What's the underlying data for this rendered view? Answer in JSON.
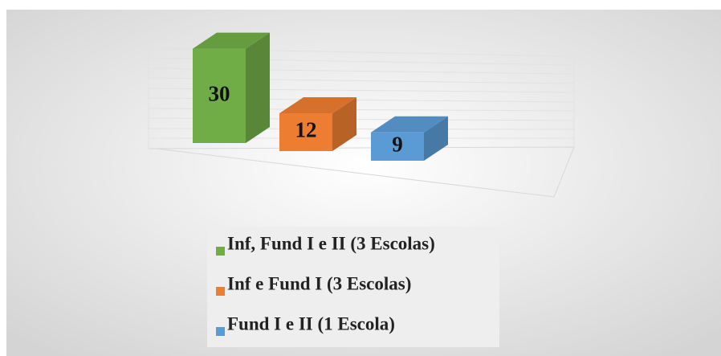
{
  "chart_data": {
    "type": "bar3d",
    "categories": [
      null
    ],
    "series": [
      {
        "name": "Inf, Fund I e II (3 Escolas)",
        "color": "#70ad47",
        "values": [
          30
        ]
      },
      {
        "name": "Inf e Fund I (3 Escolas)",
        "color": "#ed7d31",
        "values": [
          12
        ]
      },
      {
        "name": "Fund I e II (1 Escola)",
        "color": "#5b9bd5",
        "values": [
          9
        ]
      }
    ],
    "ylim": [
      0,
      35
    ],
    "legend": "bottom"
  }
}
